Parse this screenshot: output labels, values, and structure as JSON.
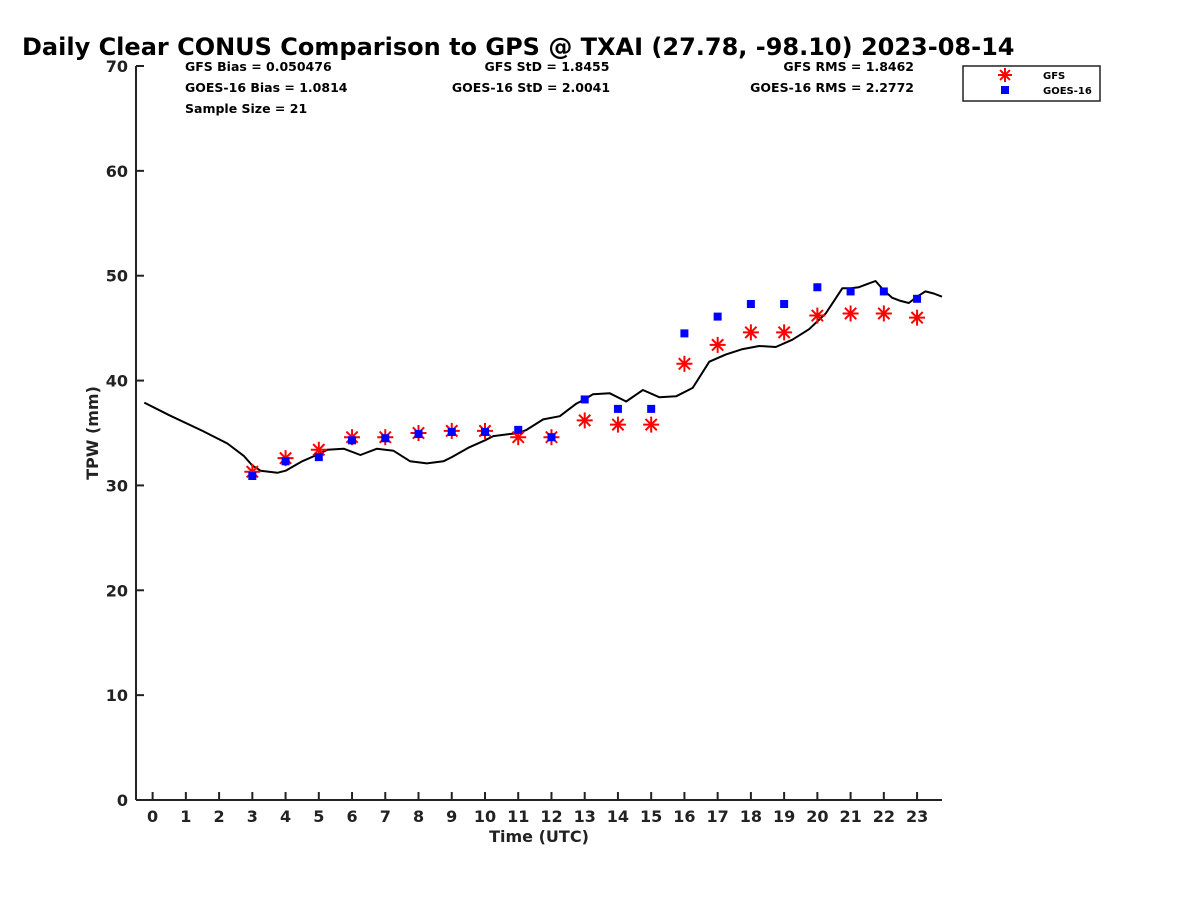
{
  "chart_data": {
    "type": "scatter",
    "title": "Daily Clear CONUS Comparison to GPS @ TXAI (27.78, -98.10) 2023-08-14",
    "xlabel": "Time (UTC)",
    "ylabel": "TPW (mm)",
    "xlim": [
      -0.5,
      23.75
    ],
    "ylim": [
      0,
      70
    ],
    "x_ticks": [
      "0",
      "1",
      "2",
      "3",
      "4",
      "5",
      "6",
      "7",
      "8",
      "9",
      "10",
      "11",
      "12",
      "13",
      "14",
      "15",
      "16",
      "17",
      "18",
      "19",
      "20",
      "21",
      "22",
      "23"
    ],
    "y_ticks": [
      "0",
      "10",
      "20",
      "30",
      "40",
      "50",
      "60",
      "70"
    ],
    "grid": false,
    "legend_position": "top-right",
    "stats": {
      "gfs_bias": "GFS Bias = 0.050476",
      "gfs_std": "GFS StD = 1.8455",
      "gfs_rms": "GFS RMS = 1.8462",
      "goes_bias": "GOES-16 Bias = 1.0814",
      "goes_std": "GOES-16 StD = 2.0041",
      "goes_rms": "GOES-16 RMS = 2.2772",
      "sample_size": "Sample Size = 21"
    },
    "series": [
      {
        "name": "GPS",
        "kind": "line",
        "color": "#000000",
        "x": [
          -0.25,
          0.5,
          1.5,
          2.25,
          2.75,
          3.0,
          3.25,
          3.75,
          4.0,
          4.5,
          5.0,
          5.25,
          5.75,
          6.25,
          6.75,
          7.25,
          7.75,
          8.25,
          8.75,
          9.0,
          9.5,
          10.0,
          10.25,
          10.75,
          11.0,
          11.25,
          11.75,
          12.25,
          12.75,
          13.0,
          13.25,
          13.75,
          14.25,
          14.75,
          15.25,
          15.75,
          16.25,
          16.75,
          17.25,
          17.75,
          18.25,
          18.75,
          19.25,
          19.75,
          20.25,
          20.5,
          20.75,
          21.0,
          21.25,
          21.5,
          21.75,
          22.0,
          22.25,
          22.5,
          22.75,
          23.0,
          23.25,
          23.5,
          23.75
        ],
        "values": [
          37.9,
          36.7,
          35.2,
          34.0,
          32.8,
          31.9,
          31.4,
          31.2,
          31.4,
          32.3,
          33.0,
          33.4,
          33.5,
          32.9,
          33.5,
          33.3,
          32.3,
          32.1,
          32.3,
          32.7,
          33.6,
          34.3,
          34.7,
          34.9,
          35.0,
          35.3,
          36.3,
          36.6,
          37.8,
          38.2,
          38.7,
          38.8,
          38.0,
          39.1,
          38.4,
          38.5,
          39.3,
          41.8,
          42.5,
          43.0,
          43.3,
          43.2,
          43.9,
          44.9,
          46.4,
          47.6,
          48.8,
          48.8,
          48.9,
          49.2,
          49.5,
          48.6,
          47.9,
          47.6,
          47.4,
          48.0,
          48.5,
          48.3,
          48.0
        ]
      },
      {
        "name": "GFS",
        "kind": "asterisk",
        "color": "#ff0000",
        "x": [
          3,
          4,
          5,
          6,
          7,
          8,
          9,
          10,
          11,
          12,
          13,
          14,
          15,
          16,
          17,
          18,
          19,
          20,
          21,
          22,
          23
        ],
        "values": [
          31.3,
          32.6,
          33.4,
          34.6,
          34.6,
          35.0,
          35.2,
          35.2,
          34.6,
          34.6,
          36.2,
          35.8,
          35.8,
          41.6,
          43.4,
          44.6,
          44.6,
          46.2,
          46.4,
          46.4,
          46.0
        ]
      },
      {
        "name": "GOES-16",
        "kind": "square",
        "color": "#0000ff",
        "x": [
          3,
          4,
          5,
          6,
          7,
          8,
          9,
          10,
          11,
          12,
          13,
          14,
          15,
          16,
          17,
          18,
          19,
          20,
          21,
          22,
          23
        ],
        "values": [
          30.9,
          32.3,
          32.7,
          34.3,
          34.5,
          34.9,
          35.1,
          35.1,
          35.3,
          34.6,
          38.2,
          37.3,
          37.3,
          44.5,
          46.1,
          47.3,
          47.3,
          48.9,
          48.5,
          48.5,
          47.8
        ]
      }
    ]
  }
}
